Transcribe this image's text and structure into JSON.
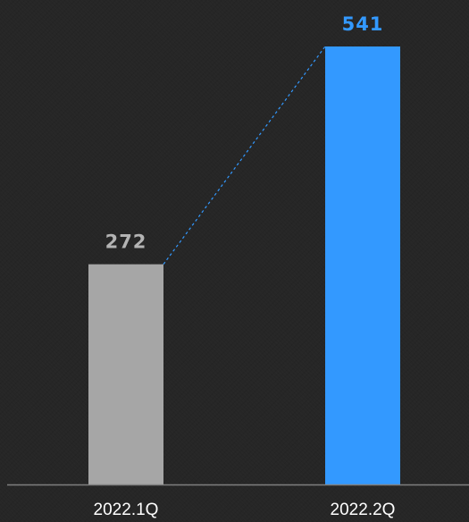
{
  "chart_data": {
    "type": "bar",
    "categories": [
      "2022.1Q",
      "2022.2Q"
    ],
    "values": [
      272,
      541
    ],
    "data_labels": [
      "272",
      "541"
    ],
    "ylim": [
      0,
      541
    ],
    "grid": false,
    "legend": "none",
    "connector": "dashed line from top of first bar to top of second bar",
    "colors": {
      "background": "#262626",
      "bars": [
        "#a6a6a6",
        "#3399ff"
      ],
      "value_labels": [
        "#b3b3b3",
        "#3399ff"
      ],
      "connector": "#3399ff",
      "axis": "#7f7f7f",
      "tick_labels": "#ffffff"
    }
  }
}
